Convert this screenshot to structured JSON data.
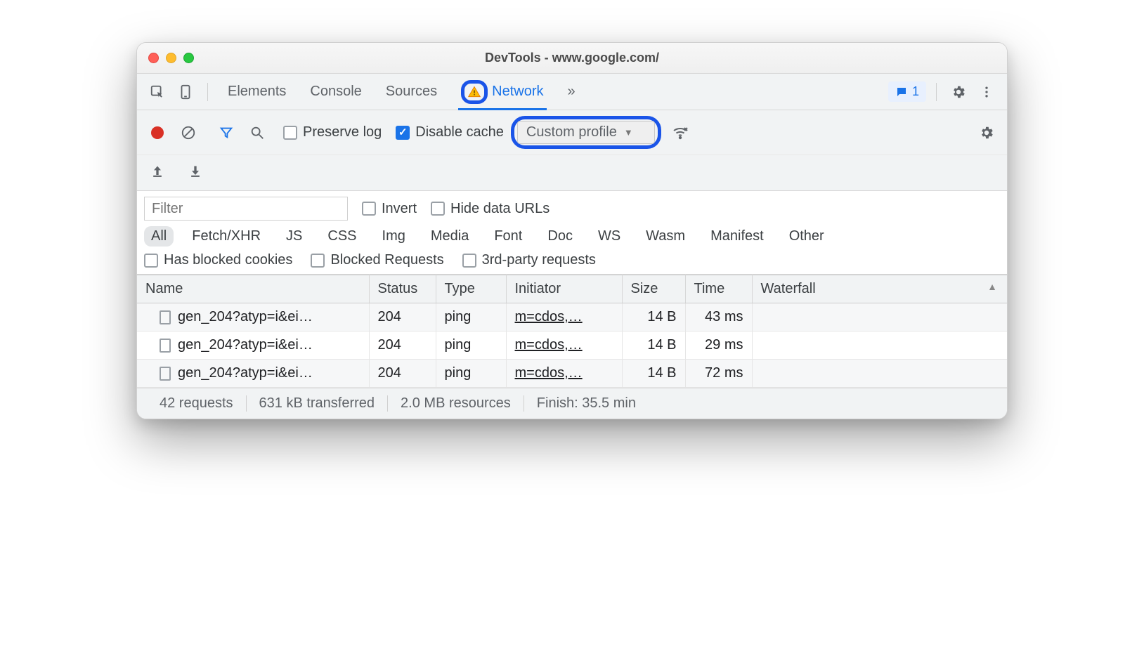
{
  "window": {
    "title": "DevTools - www.google.com/"
  },
  "tabs": {
    "items": [
      "Elements",
      "Console",
      "Sources",
      "Network"
    ],
    "active_index": 3,
    "more_glyph": "»",
    "issues_count": "1"
  },
  "toolbar": {
    "preserve_log_label": "Preserve log",
    "preserve_log_checked": false,
    "disable_cache_label": "Disable cache",
    "disable_cache_checked": true,
    "throttle_value": "Custom profile"
  },
  "filter": {
    "placeholder": "Filter",
    "invert_label": "Invert",
    "invert_checked": false,
    "hide_data_urls_label": "Hide data URLs",
    "hide_data_urls_checked": false,
    "types": [
      "All",
      "Fetch/XHR",
      "JS",
      "CSS",
      "Img",
      "Media",
      "Font",
      "Doc",
      "WS",
      "Wasm",
      "Manifest",
      "Other"
    ],
    "type_active_index": 0,
    "has_blocked_cookies_label": "Has blocked cookies",
    "blocked_requests_label": "Blocked Requests",
    "third_party_label": "3rd-party requests"
  },
  "table": {
    "columns": [
      "Name",
      "Status",
      "Type",
      "Initiator",
      "Size",
      "Time",
      "Waterfall"
    ],
    "rows": [
      {
        "name": "gen_204?atyp=i&ei…",
        "status": "204",
        "type": "ping",
        "initiator": "m=cdos,…",
        "size": "14 B",
        "time": "43 ms"
      },
      {
        "name": "gen_204?atyp=i&ei…",
        "status": "204",
        "type": "ping",
        "initiator": "m=cdos,…",
        "size": "14 B",
        "time": "29 ms"
      },
      {
        "name": "gen_204?atyp=i&ei…",
        "status": "204",
        "type": "ping",
        "initiator": "m=cdos,…",
        "size": "14 B",
        "time": "72 ms"
      }
    ]
  },
  "status": {
    "requests": "42 requests",
    "transferred": "631 kB transferred",
    "resources": "2.0 MB resources",
    "finish": "Finish: 35.5 min"
  },
  "colors": {
    "accent": "#1a73e8",
    "highlight_ring": "#1a54e8",
    "text": "#3c4043",
    "muted": "#5f6368",
    "panel_bg": "#f1f3f4",
    "border": "#d7d7d7"
  }
}
